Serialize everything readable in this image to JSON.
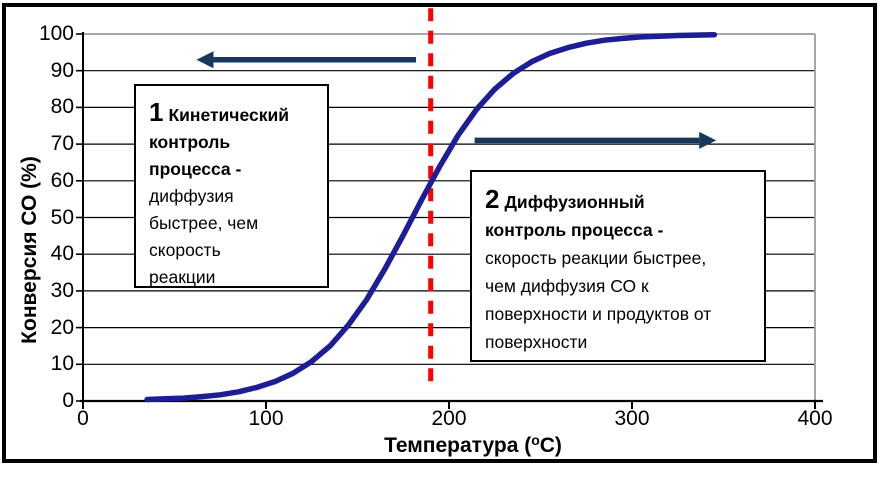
{
  "chart_data": {
    "type": "line",
    "title": "",
    "xlabel_prefix": "Температура (",
    "xlabel_sup": "о",
    "xlabel_suffix": "С)",
    "ylabel": "Конверсия СО (%)",
    "xlim": [
      0,
      400
    ],
    "ylim": [
      0,
      100
    ],
    "x_ticks": [
      0,
      100,
      200,
      300,
      400
    ],
    "y_ticks": [
      0,
      10,
      20,
      30,
      40,
      50,
      60,
      70,
      80,
      90,
      100
    ],
    "grid": "horizontal",
    "legend": "none",
    "series": [
      {
        "name": "Конверсия СО",
        "color": "#1d1d96",
        "x": [
          35,
          45,
          55,
          65,
          75,
          85,
          95,
          105,
          115,
          125,
          135,
          145,
          155,
          165,
          175,
          185,
          195,
          205,
          215,
          225,
          235,
          245,
          255,
          265,
          275,
          285,
          295,
          305,
          315,
          325,
          335,
          345
        ],
        "y": [
          0.4,
          0.6,
          0.8,
          1.2,
          1.7,
          2.5,
          3.7,
          5.3,
          7.6,
          10.8,
          15.0,
          20.7,
          27.6,
          36.0,
          45.2,
          54.8,
          64.0,
          72.4,
          79.4,
          85.0,
          89.2,
          92.4,
          94.7,
          96.3,
          97.5,
          98.3,
          98.8,
          99.2,
          99.4,
          99.6,
          99.7,
          99.8
        ]
      }
    ],
    "vline": {
      "x": 190,
      "y_from": 3,
      "y_to": 107,
      "color": "#ff0000",
      "style": "dashed"
    },
    "arrows": [
      {
        "name": "kinetic-region-arrow",
        "x_tail": 182,
        "x_head": 62,
        "y": 93,
        "color": "#17375d"
      },
      {
        "name": "diffusion-region-arrow",
        "x_tail": 214,
        "x_head": 346,
        "y": 71,
        "color": "#17375d"
      }
    ]
  },
  "annotations": {
    "box1": {
      "number": "1",
      "lines": [
        {
          "bold": true,
          "with_number": true,
          "text": "Кинетический"
        },
        {
          "bold": true,
          "text": "контроль"
        },
        {
          "bold": true,
          "text": "процесса -"
        },
        {
          "bold": false,
          "text": "диффузия"
        },
        {
          "bold": false,
          "text": "быстрее, чем"
        },
        {
          "bold": false,
          "text": "скорость"
        },
        {
          "bold": false,
          "text": "реакции"
        }
      ]
    },
    "box2": {
      "number": "2",
      "lines": [
        {
          "bold": true,
          "with_number": true,
          "text": "Диффузионный"
        },
        {
          "bold": true,
          "text": "контроль процесса -"
        },
        {
          "bold": false,
          "text": "скорость реакции быстрее,"
        },
        {
          "bold": false,
          "text": "чем диффузия СО к"
        },
        {
          "bold": false,
          "text": "поверхности и продуктов от"
        },
        {
          "bold": false,
          "text": "поверхности"
        }
      ]
    }
  },
  "colors": {
    "curve": "#1d1d96",
    "arrow": "#17375d",
    "vline": "#ff0000",
    "gridline": "#000000",
    "top_border": "#a6a6a6",
    "right_border": "#a6a6a6",
    "frame": "#000000",
    "background": "#ffffff"
  }
}
